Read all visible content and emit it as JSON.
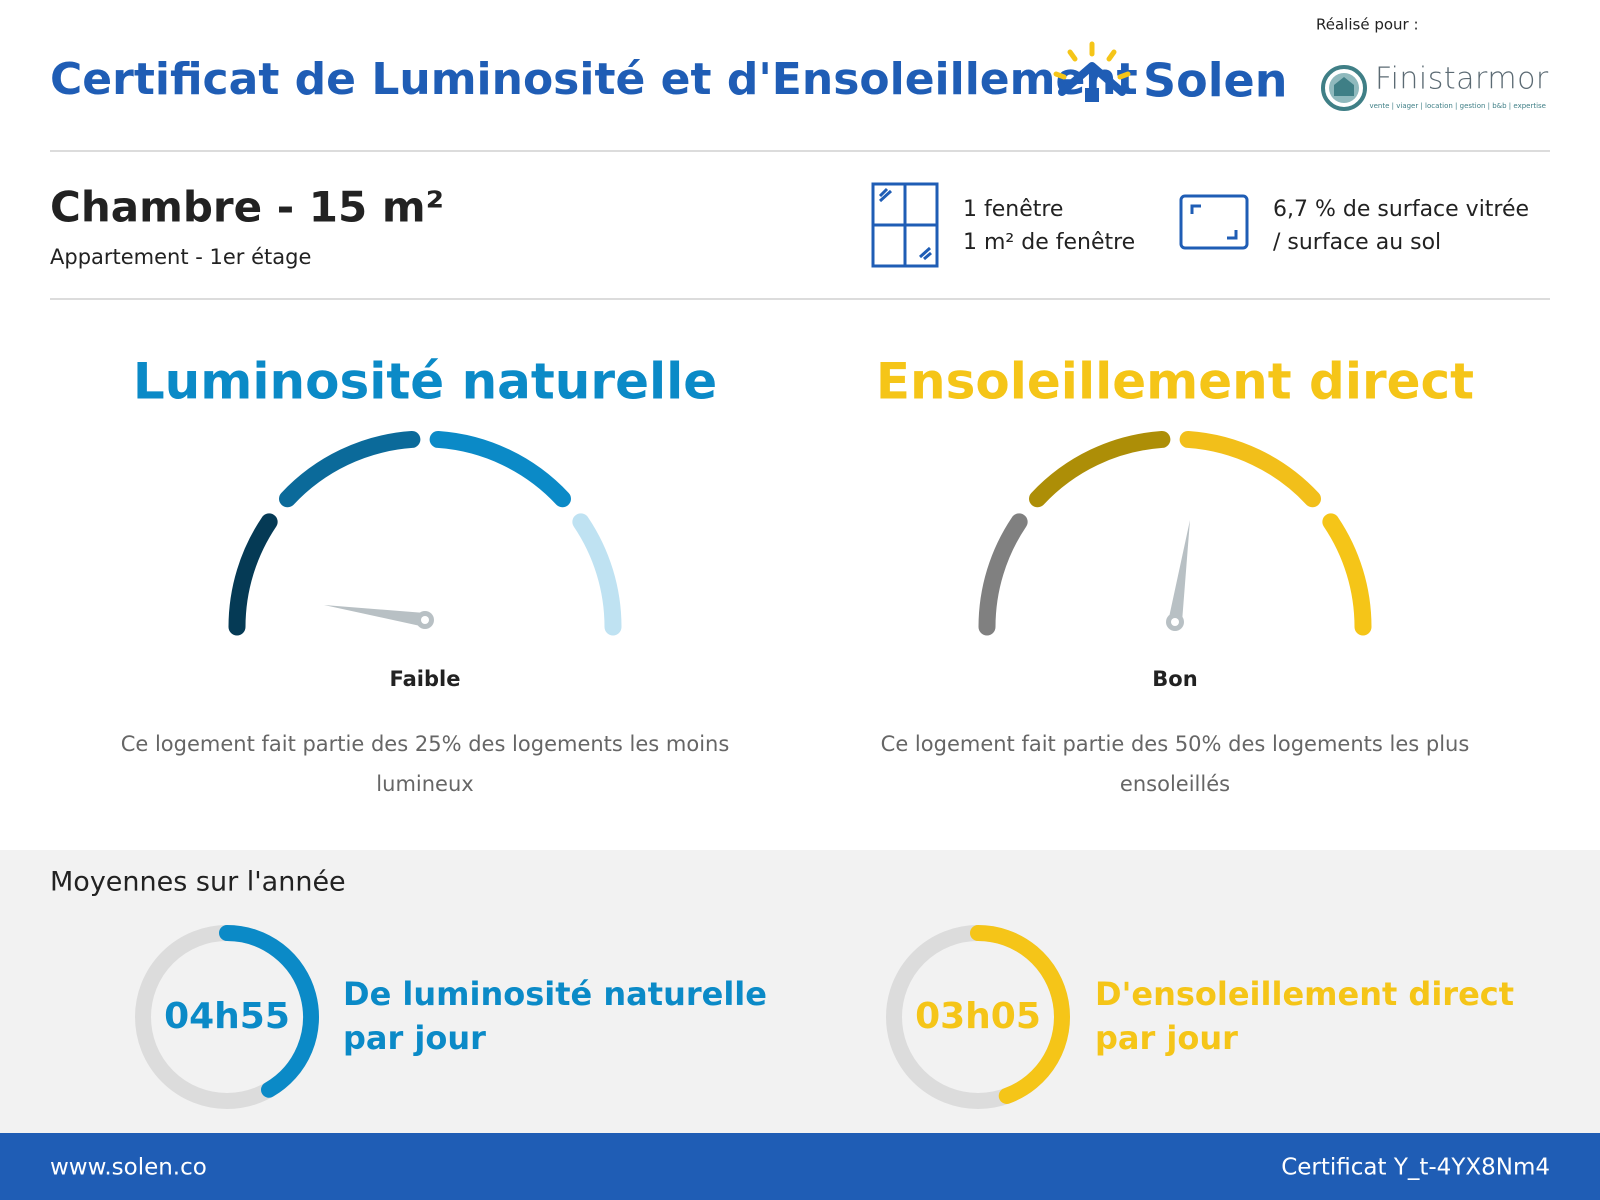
{
  "header": {
    "title": "Certificat de Luminosité et d'Ensoleillement",
    "brand": "Solen",
    "made_for": "Réalisé pour :",
    "client": "Finistarmor",
    "client_tagline": "vente | viager | location | gestion | b&b | expertise"
  },
  "room": {
    "title": "Chambre - 15 m²",
    "subtitle": "Appartement - 1er étage",
    "windows": [
      "1 fenêtre",
      "1 m² de fenêtre"
    ],
    "glazing": [
      "6,7 % de surface vitrée",
      "/ surface au sol"
    ]
  },
  "gauges": [
    {
      "title": "Luminosité naturelle",
      "level": "Faible",
      "description": [
        "Ce logement fait partie des 25% des logements les moins",
        "lumineux"
      ]
    },
    {
      "title": "Ensoleillement direct",
      "level": "Bon",
      "description": [
        "Ce logement fait partie des 50% des logements les plus",
        "ensoleillés"
      ]
    }
  ],
  "averages": {
    "title": "Moyennes sur l'année",
    "items": [
      {
        "value": "04h55",
        "label": [
          "De luminosité naturelle",
          "par jour"
        ]
      },
      {
        "value": "03h05",
        "label": [
          "D'ensoleillement direct",
          "par jour"
        ]
      }
    ]
  },
  "footer": {
    "website": "www.solen.co",
    "certificate": "Certificat Y_t-4YX8Nm4"
  }
}
